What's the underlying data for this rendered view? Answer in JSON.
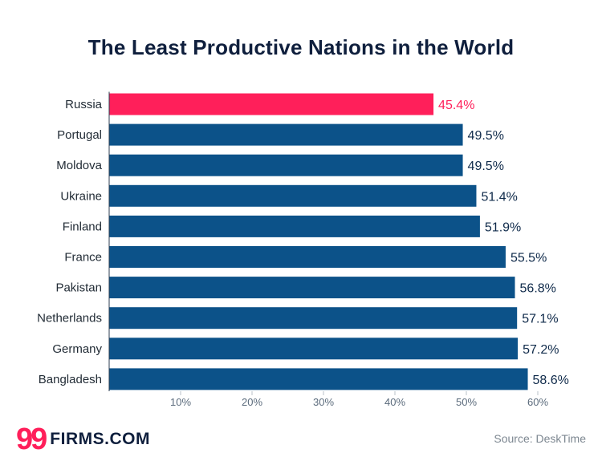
{
  "chart_data": {
    "type": "bar",
    "orientation": "horizontal",
    "title": "The Least Productive Nations in the World",
    "categories": [
      "Russia",
      "Portugal",
      "Moldova",
      "Ukraine",
      "Finland",
      "France",
      "Pakistan",
      "Netherlands",
      "Germany",
      "Bangladesh"
    ],
    "values": [
      45.4,
      49.5,
      49.5,
      51.4,
      51.9,
      55.5,
      56.8,
      57.1,
      57.2,
      58.6
    ],
    "data_labels": [
      "45.4%",
      "49.5%",
      "49.5%",
      "51.4%",
      "51.9%",
      "55.5%",
      "56.8%",
      "57.1%",
      "57.2%",
      "58.6%"
    ],
    "highlight_index": 0,
    "xlim": [
      0,
      60
    ],
    "x_ticks": [
      10,
      20,
      30,
      40,
      50,
      60
    ],
    "x_tick_labels": [
      "10%",
      "20%",
      "30%",
      "40%",
      "50%",
      "60%"
    ],
    "grid": false,
    "colors": {
      "bar": "#0c5289",
      "highlight": "#ff1f5a",
      "label": "#0f2a4a",
      "category": "#222c36",
      "axis": "#2c3e50"
    }
  },
  "footer": {
    "logo_mark": "99",
    "logo_text": "FIRMS.COM",
    "source": "Source: DeskTime"
  }
}
